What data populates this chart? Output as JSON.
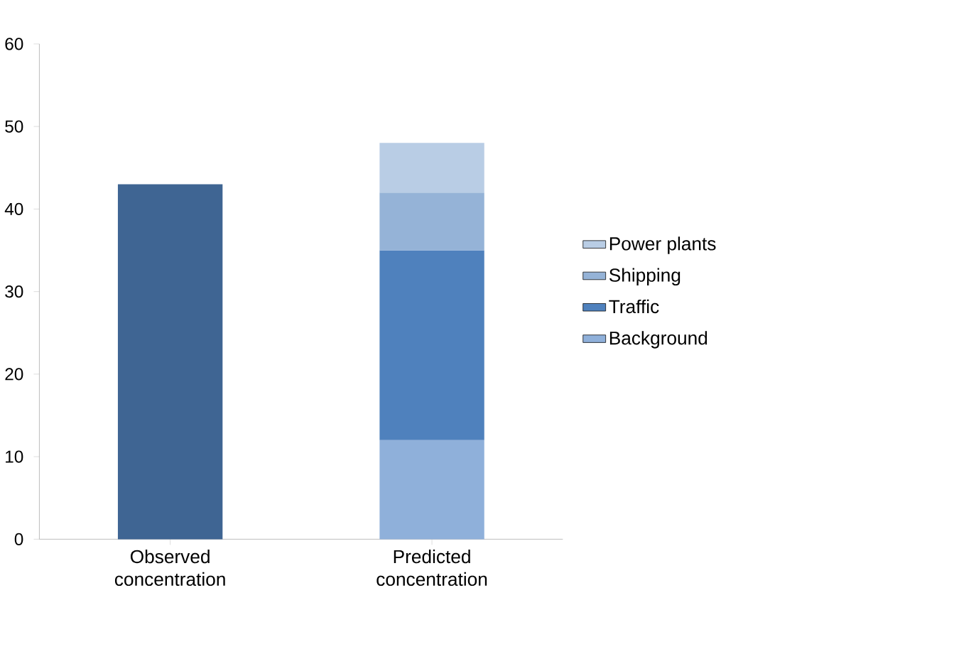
{
  "chart_data": {
    "type": "bar",
    "stacked": true,
    "categories": [
      "Observed concentration",
      "Predicted concentration"
    ],
    "series": [
      {
        "color": "#3f6593",
        "values": [
          43,
          null
        ]
      },
      {
        "name": "Background",
        "color": "#8fb0da",
        "values": [
          null,
          12
        ]
      },
      {
        "name": "Traffic",
        "color": "#4f81bd",
        "values": [
          null,
          23
        ]
      },
      {
        "name": "Shipping",
        "color": "#95b3d7",
        "values": [
          null,
          7
        ]
      },
      {
        "name": "Power plants",
        "color": "#b9cde5",
        "values": [
          null,
          6
        ]
      }
    ],
    "ylim": [
      0,
      60
    ],
    "yticks": [
      0,
      10,
      20,
      30,
      40,
      50,
      60
    ],
    "grid": false,
    "legend": "right"
  }
}
